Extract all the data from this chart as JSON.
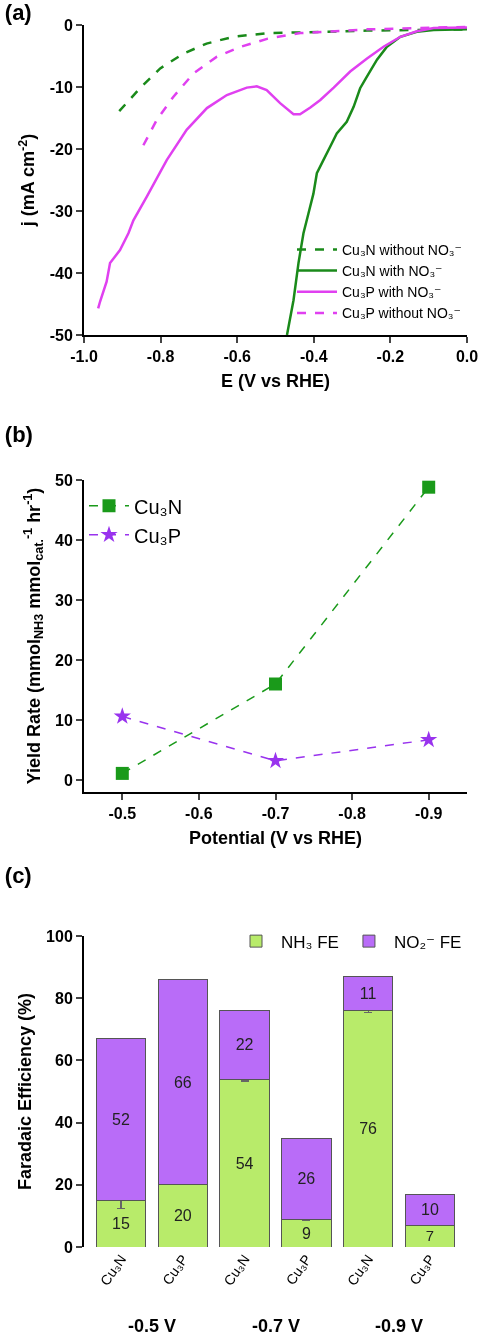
{
  "chart_data": [
    {
      "type": "line",
      "title": "(a)",
      "xlabel": "E (V vs RHE)",
      "ylabel": "j (mA cm$^{-2}$)",
      "xlim": [
        -1,
        0
      ],
      "xticks": [
        {
          "value": -1,
          "label": "-1.0"
        },
        -0.8,
        -0.6,
        -0.4,
        -0.2,
        {
          "value": 0,
          "label": "0.0"
        }
      ],
      "ylim": [
        -50,
        0
      ],
      "yticks": [
        -50,
        -40,
        -30,
        -20,
        -10,
        0
      ],
      "legend": "bottom right",
      "series": [
        {
          "name": "Cu₃N without NO₃⁻",
          "color": "#1a8a1a",
          "line_style": "dashed",
          "x": [
            -0.908,
            -0.854,
            -0.801,
            -0.74,
            -0.68,
            -0.61,
            -0.52,
            -0.44,
            -0.26,
            0
          ],
          "values": [
            -13.9,
            -10.2,
            -7.0,
            -4.6,
            -3.0,
            -1.9,
            -1.3,
            -1.2,
            -0.9,
            -0.7
          ]
        },
        {
          "name": "Cu₃N with NO₃⁻",
          "color": "#1a8a1a",
          "line_style": "solid",
          "x": [
            -0.47,
            -0.453,
            -0.44,
            -0.427,
            -0.414,
            -0.401,
            -0.392,
            -0.375,
            -0.357,
            -0.34,
            -0.314,
            -0.296,
            -0.279,
            -0.261,
            -0.235,
            -0.209,
            -0.174,
            -0.131,
            -0.087,
            0
          ],
          "values": [
            -50,
            -44.4,
            -38.4,
            -33.6,
            -30.4,
            -27.2,
            -23.9,
            -21.8,
            -19.6,
            -17.5,
            -15.6,
            -13.2,
            -10.2,
            -8.3,
            -5.6,
            -3.5,
            -1.9,
            -1.1,
            -0.8,
            -0.7
          ]
        },
        {
          "name": "Cu₃P with NO₃⁻",
          "color": "#e040f0",
          "line_style": "solid",
          "x": [
            -0.963,
            -0.958,
            -0.941,
            -0.932,
            -0.906,
            -0.884,
            -0.871,
            -0.836,
            -0.784,
            -0.732,
            -0.679,
            -0.627,
            -0.575,
            -0.549,
            -0.523,
            -0.488,
            -0.453,
            -0.436,
            -0.409,
            -0.383,
            -0.348,
            -0.305,
            -0.261,
            -0.218,
            -0.174,
            -0.131,
            -0.087,
            0
          ],
          "values": [
            -45.7,
            -44.6,
            -41.4,
            -38.4,
            -36.3,
            -33.6,
            -31.5,
            -27.7,
            -21.8,
            -16.9,
            -13.4,
            -11.3,
            -10.1,
            -9.9,
            -10.5,
            -12.6,
            -14.4,
            -14.4,
            -13.3,
            -12.1,
            -10.1,
            -7.5,
            -5.4,
            -3.5,
            -1.9,
            -1.0,
            -0.5,
            -0.4
          ]
        },
        {
          "name": "Cu₃P without NO₃⁻",
          "color": "#e040f0",
          "line_style": "dashed",
          "x": [
            -0.845,
            -0.81,
            -0.767,
            -0.714,
            -0.653,
            -0.59,
            -0.52,
            -0.435,
            -0.26,
            0
          ],
          "values": [
            -19.4,
            -15.3,
            -11.6,
            -7.8,
            -5.1,
            -3.5,
            -2.2,
            -1.3,
            -0.7,
            -0.3
          ]
        }
      ]
    },
    {
      "type": "line",
      "title": "(b)",
      "xlabel": "Potential (V vs RHE)",
      "ylabel": "Yield Rate (mmol$_{NH3}$ mmol$_{cat.}$$^{-1}$ hr$^{-1}$)",
      "x": [
        -0.5,
        -0.7,
        -0.9
      ],
      "xlim": [
        -0.45,
        -0.95
      ],
      "xticks": [
        -0.5,
        -0.6,
        -0.7,
        -0.8,
        -0.9
      ],
      "ylim": [
        -2,
        50
      ],
      "yticks": [
        0,
        10,
        20,
        30,
        40,
        50
      ],
      "legend": "top left",
      "line_style": "dashed",
      "series": [
        {
          "name": "Cu₃N",
          "color": "#1a9a1a",
          "marker": "square",
          "values": [
            1.1,
            16.0,
            48.8
          ]
        },
        {
          "name": "Cu₃P",
          "color": "#9933ee",
          "marker": "star",
          "values": [
            10.6,
            3.2,
            6.7
          ]
        }
      ]
    },
    {
      "type": "bar",
      "title": "(c)",
      "ylabel": "Faradaic Efficiency (%)",
      "categories": [
        "Cu₃N",
        "Cu₃P",
        "Cu₃N",
        "Cu₃P",
        "Cu₃N",
        "Cu₃P"
      ],
      "stacked": true,
      "data_labels": true,
      "ylim": [
        0,
        100
      ],
      "yticks": [
        0,
        20,
        40,
        60,
        80,
        100
      ],
      "legend": "top right",
      "annotations": [
        "-0.5 V",
        "-0.7 V",
        "-0.9 V"
      ],
      "series": [
        {
          "name": "NH₃ FE",
          "color": "#b8eb6a",
          "values": [
            15,
            20,
            54,
            9,
            76,
            7
          ],
          "errors": [
            2.5,
            null,
            0.6,
            0.6,
            0.6,
            null
          ]
        },
        {
          "name": "NO₂⁻ FE",
          "color": "#b96cf8",
          "values": [
            52,
            66,
            22,
            26,
            11,
            10
          ]
        }
      ]
    }
  ]
}
